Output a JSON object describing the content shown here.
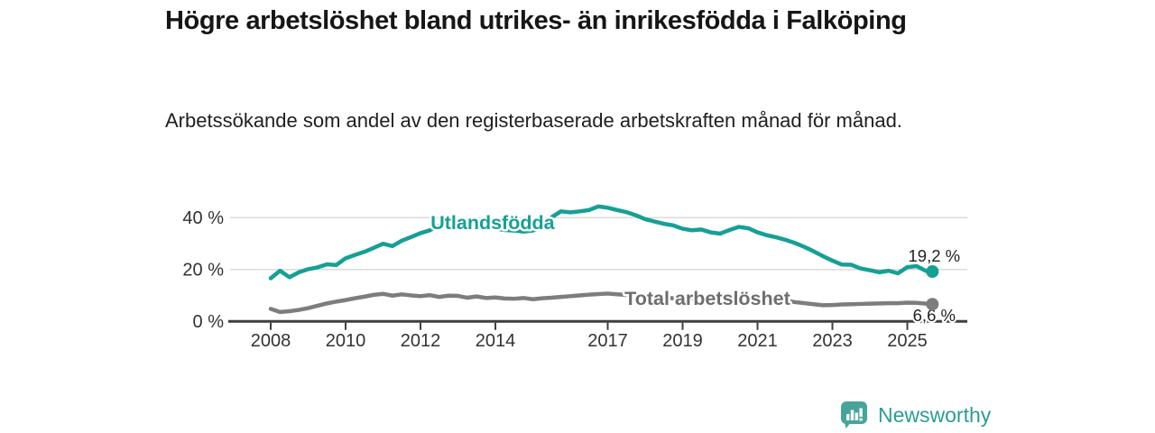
{
  "header": {
    "title": "Högre arbetslöshet bland utrikes- än inrikesfödda i Falköping",
    "subtitle": "Arbetssökande som andel av den registerbaserade arbetskraften månad för månad."
  },
  "branding": {
    "logo_text": "Newsworthy",
    "logo_icon": "bar-chart-speech-bubble-icon",
    "logo_color": "#46a49b",
    "logo_text_color": "#2d9c93"
  },
  "colors": {
    "grid": "#dbdbdb",
    "axis": "#3f3f3f",
    "tick_text": "#333333",
    "end_label_text": "#222222",
    "background": "#ffffff"
  },
  "chart_data": {
    "type": "line",
    "title": "Högre arbetslöshet bland utrikes- än inrikesfödda i Falköping",
    "subtitle": "Arbetssökande som andel av den registerbaserade arbetskraften månad för månad.",
    "xlabel": "",
    "ylabel": "",
    "grid": true,
    "legend_position": "inline-labels",
    "ylim": [
      0,
      47
    ],
    "xlim": [
      2006.9,
      2026.7
    ],
    "y_ticks": [
      0,
      20,
      40
    ],
    "y_tick_labels": [
      "0 %",
      "20 %",
      "40 %"
    ],
    "x_ticks": [
      2008,
      2010,
      2012,
      2014,
      2017,
      2019,
      2021,
      2023,
      2025
    ],
    "x_tick_labels": [
      "2008",
      "2010",
      "2012",
      "2014",
      "2017",
      "2019",
      "2021",
      "2023",
      "2025"
    ],
    "x": [
      2008,
      2008.25,
      2008.5,
      2008.75,
      2009,
      2009.25,
      2009.5,
      2009.75,
      2010,
      2010.25,
      2010.5,
      2010.75,
      2011,
      2011.25,
      2011.5,
      2011.75,
      2012,
      2012.25,
      2012.5,
      2012.75,
      2013,
      2013.25,
      2013.5,
      2013.75,
      2014,
      2014.25,
      2014.5,
      2014.75,
      2015,
      2015.25,
      2015.5,
      2015.75,
      2016,
      2016.25,
      2016.5,
      2016.75,
      2017,
      2017.25,
      2017.5,
      2017.75,
      2018,
      2018.25,
      2018.5,
      2018.75,
      2019,
      2019.25,
      2019.5,
      2019.75,
      2020,
      2020.25,
      2020.5,
      2020.75,
      2021,
      2021.25,
      2021.5,
      2021.75,
      2022,
      2022.25,
      2022.5,
      2022.75,
      2023,
      2023.25,
      2023.5,
      2023.75,
      2024,
      2024.25,
      2024.5,
      2024.75,
      2025,
      2025.25,
      2025.5,
      2025.67
    ],
    "series": [
      {
        "name": "Utlandsfödda",
        "color": "#16a095",
        "label_color": "#16a095",
        "label_x": 2012.27,
        "label_value": 35.6,
        "end_label": "19,2 %",
        "end_label_below": false,
        "latest_value": 19.2,
        "values": [
          16.6,
          19.5,
          17.0,
          18.9,
          20.1,
          20.8,
          22.0,
          21.7,
          24.3,
          25.6,
          26.8,
          28.3,
          29.9,
          29.0,
          31.1,
          32.5,
          34.0,
          35.1,
          36.9,
          37.5,
          38.0,
          38.3,
          38.9,
          36.6,
          35.8,
          35.2,
          35.0,
          34.6,
          35.0,
          36.2,
          40.1,
          42.4,
          42.0,
          42.4,
          42.9,
          44.3,
          43.8,
          42.9,
          42.1,
          40.9,
          39.4,
          38.5,
          37.6,
          37.0,
          35.7,
          35.1,
          35.4,
          34.3,
          33.8,
          35.2,
          36.4,
          35.9,
          34.3,
          33.2,
          32.4,
          31.4,
          30.2,
          28.7,
          27.0,
          25.1,
          23.4,
          21.9,
          21.8,
          20.4,
          19.7,
          18.9,
          19.5,
          18.5,
          20.9,
          21.3,
          19.4,
          19.2
        ]
      },
      {
        "name": "Total arbetslöshet",
        "color": "#7d7d7d",
        "label_color": "#6e6e6e",
        "label_x": 2017.45,
        "label_value": 6.3,
        "end_label": "6,6 %",
        "end_label_below": true,
        "latest_value": 6.6,
        "values": [
          4.8,
          3.6,
          3.9,
          4.4,
          5.1,
          6.0,
          6.9,
          7.6,
          8.2,
          8.9,
          9.5,
          10.2,
          10.6,
          9.9,
          10.4,
          10.0,
          9.7,
          10.1,
          9.4,
          9.9,
          9.8,
          9.1,
          9.6,
          9.0,
          9.2,
          8.8,
          8.7,
          9.0,
          8.5,
          8.9,
          9.1,
          9.4,
          9.7,
          10.0,
          10.3,
          10.5,
          10.7,
          10.4,
          10.2,
          10.0,
          9.6,
          9.3,
          9.1,
          8.9,
          8.7,
          8.5,
          8.6,
          8.4,
          8.5,
          9.2,
          9.6,
          9.4,
          9.0,
          8.7,
          8.4,
          8.0,
          7.4,
          7.0,
          6.6,
          6.2,
          6.3,
          6.5,
          6.6,
          6.7,
          6.8,
          6.9,
          7.0,
          7.0,
          7.2,
          7.1,
          6.8,
          6.6
        ]
      }
    ]
  }
}
